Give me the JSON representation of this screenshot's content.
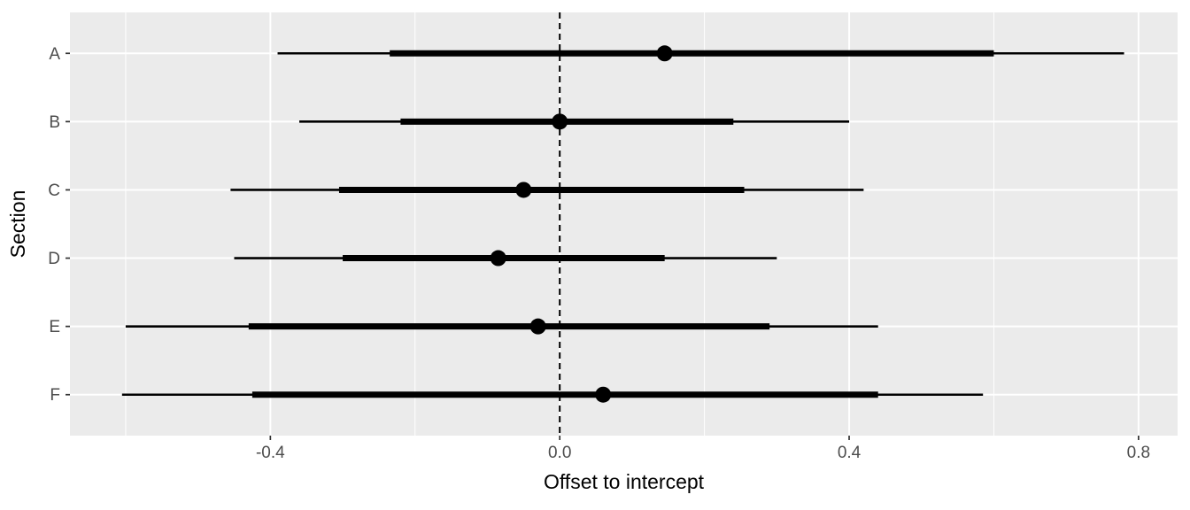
{
  "chart_data": {
    "type": "pointrange",
    "title": "",
    "xlabel": "Offset to intercept",
    "ylabel": "Section",
    "categories": [
      "A",
      "B",
      "C",
      "D",
      "E",
      "F"
    ],
    "x_ticks": [
      -0.4,
      0.0,
      0.4,
      0.8
    ],
    "x_tick_labels": [
      "-0.4",
      "0.0",
      "0.4",
      "0.8"
    ],
    "x_minor_ticks": [
      -0.6,
      -0.2,
      0.2,
      0.6
    ],
    "xlim": [
      -0.677,
      0.854
    ],
    "reference_line_x": 0,
    "grid": "on",
    "legend": "none",
    "rows": [
      {
        "category": "A",
        "point": 0.145,
        "inner": [
          -0.235,
          0.6
        ],
        "outer": [
          -0.39,
          0.78
        ]
      },
      {
        "category": "B",
        "point": 0.0,
        "inner": [
          -0.22,
          0.24
        ],
        "outer": [
          -0.36,
          0.4
        ]
      },
      {
        "category": "C",
        "point": -0.05,
        "inner": [
          -0.305,
          0.255
        ],
        "outer": [
          -0.455,
          0.42
        ]
      },
      {
        "category": "D",
        "point": -0.085,
        "inner": [
          -0.3,
          0.145
        ],
        "outer": [
          -0.45,
          0.3
        ]
      },
      {
        "category": "E",
        "point": -0.03,
        "inner": [
          -0.43,
          0.29
        ],
        "outer": [
          -0.6,
          0.44
        ]
      },
      {
        "category": "F",
        "point": 0.06,
        "inner": [
          -0.425,
          0.44
        ],
        "outer": [
          -0.605,
          0.585
        ]
      }
    ],
    "style": {
      "background": "#FFFFFF",
      "panel_bg": "#EBEBEB",
      "grid_color": "#FFFFFF",
      "data_color": "#000000",
      "tick_label_color": "#4D4D4D",
      "axis_title_color": "#000000",
      "tick_mark_color": "#333333"
    }
  }
}
